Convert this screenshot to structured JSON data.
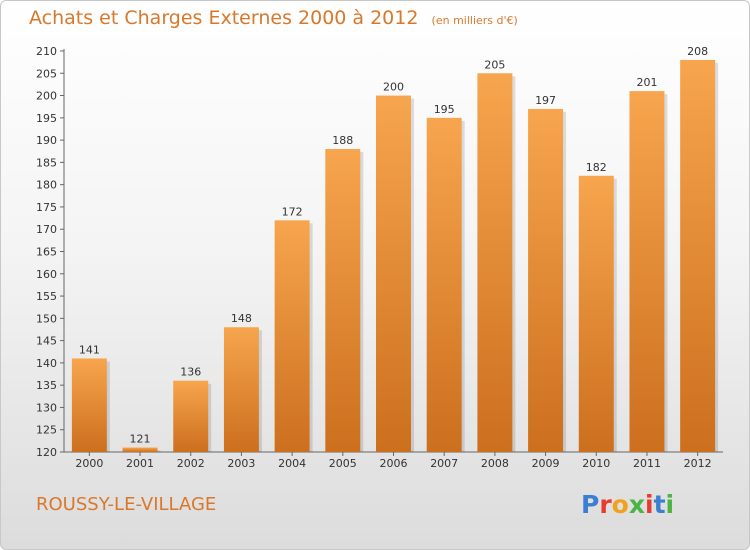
{
  "header": {
    "title": "Achats et Charges Externes 2000 à 2012",
    "unit_note": "(en milliers d'€)"
  },
  "footer": {
    "commune": "ROUSSY-LE-VILLAGE",
    "brand": "Proxiti",
    "brand_colors": [
      "#3a7fd1",
      "#e83a2e",
      "#f0a21c",
      "#4bb543",
      "#e83a2e",
      "#3a7fd1",
      "#4bb543"
    ]
  },
  "colors": {
    "bar_light": "#f7a54e",
    "bar_dark": "#cc6f1e",
    "title": "#d9782b"
  },
  "chart_data": {
    "type": "bar",
    "categories": [
      "2000",
      "2001",
      "2002",
      "2003",
      "2004",
      "2005",
      "2006",
      "2007",
      "2008",
      "2009",
      "2010",
      "2011",
      "2012"
    ],
    "values": [
      141,
      121,
      136,
      148,
      172,
      188,
      200,
      195,
      205,
      197,
      182,
      201,
      208
    ],
    "title": "Achats et Charges Externes 2000 à 2012",
    "subtitle": "(en milliers d'€)",
    "xlabel": "",
    "ylabel": "",
    "ylim": [
      120,
      210
    ],
    "yticks": [
      120,
      125,
      130,
      135,
      140,
      145,
      150,
      155,
      160,
      165,
      170,
      175,
      180,
      185,
      190,
      195,
      200,
      205,
      210
    ],
    "grid": false,
    "data_labels": true
  }
}
